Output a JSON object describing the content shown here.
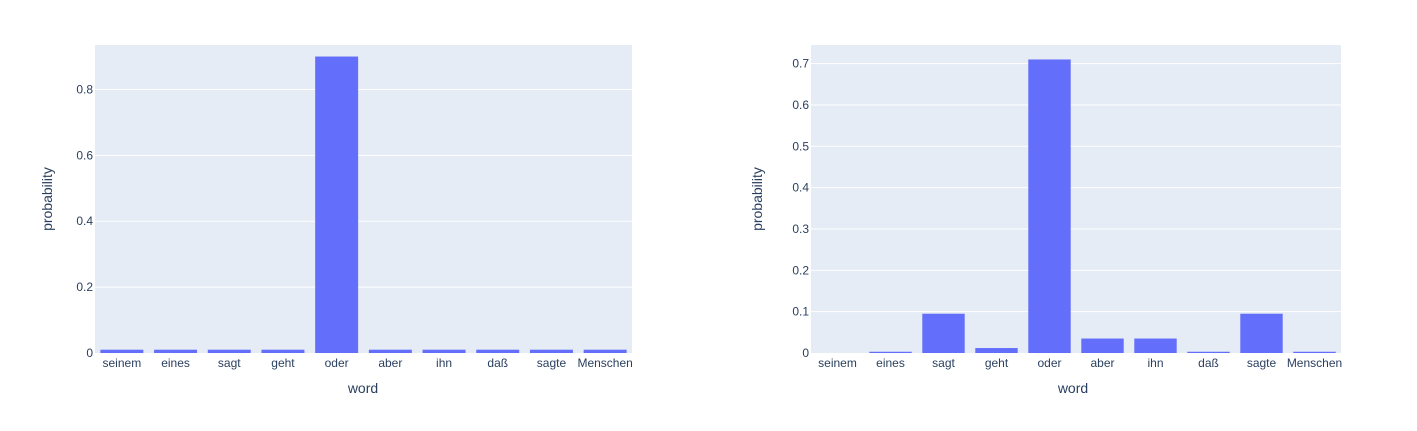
{
  "colors": {
    "plot_bg": "#e5ecf6",
    "grid": "#ffffff",
    "bar": "#636efa",
    "text": "#2a3f5f",
    "page_bg": "#ffffff"
  },
  "chart_data": [
    {
      "type": "bar",
      "categories": [
        "seinem",
        "eines",
        "sagt",
        "geht",
        "oder",
        "aber",
        "ihn",
        "daß",
        "sagte",
        "Menschen"
      ],
      "values": [
        0.01,
        0.01,
        0.01,
        0.01,
        0.9,
        0.01,
        0.01,
        0.01,
        0.01,
        0.01
      ],
      "xlabel": "word",
      "ylabel": "probability",
      "ylim": [
        0,
        0.935
      ],
      "yticks": [
        0,
        0.2,
        0.4,
        0.6,
        0.8
      ],
      "ytick_labels": [
        "0",
        "0.2",
        "0.4",
        "0.6",
        "0.8"
      ],
      "grid": true
    },
    {
      "type": "bar",
      "categories": [
        "seinem",
        "eines",
        "sagt",
        "geht",
        "oder",
        "aber",
        "ihn",
        "daß",
        "sagte",
        "Menschen"
      ],
      "values": [
        0.0,
        0.003,
        0.095,
        0.012,
        0.71,
        0.035,
        0.035,
        0.003,
        0.095,
        0.003
      ],
      "xlabel": "word",
      "ylabel": "probability",
      "ylim": [
        0,
        0.745
      ],
      "yticks": [
        0,
        0.1,
        0.2,
        0.3,
        0.4,
        0.5,
        0.6,
        0.7
      ],
      "ytick_labels": [
        "0",
        "0.1",
        "0.2",
        "0.3",
        "0.4",
        "0.5",
        "0.6",
        "0.7"
      ],
      "grid": true
    }
  ]
}
